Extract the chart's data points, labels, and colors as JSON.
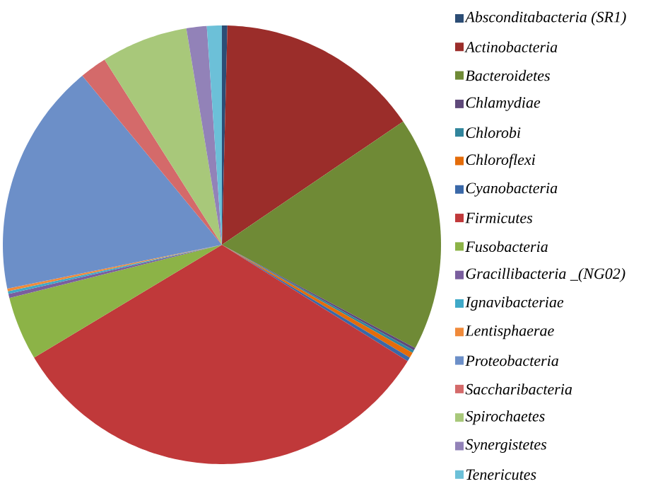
{
  "chart_data": {
    "type": "pie",
    "categories": [
      "Absconditabacteria (SR1)",
      "Actinobacteria",
      "Bacteroidetes",
      "Chlamydiae",
      "Chlorobi",
      "Chloroflexi",
      "Cyanobacteria",
      "Firmicutes",
      "Fusobacteria",
      "Gracillibacteria _(NG02)",
      "Ignavibacteriae",
      "Lentisphaerae",
      "Proteobacteria",
      "Saccharibacteria",
      "Spirochaetes",
      "Synergistetes",
      "Tenericutes"
    ],
    "values": [
      0.4,
      15.1,
      17.3,
      0.2,
      0.2,
      0.4,
      0.3,
      32.5,
      4.7,
      0.3,
      0.2,
      0.2,
      17.2,
      2.0,
      6.4,
      1.5,
      1.1
    ],
    "colors": [
      "#2c4d75",
      "#9b2d2a",
      "#6f8a36",
      "#5f497a",
      "#31859c",
      "#e46c0a",
      "#3a68a8",
      "#c0393a",
      "#8cb347",
      "#7a5e9e",
      "#3fa9c8",
      "#f08a3a",
      "#6c8fc8",
      "#d46a6a",
      "#a8c87a",
      "#9282b8",
      "#6cc0d8"
    ],
    "legend": "right"
  }
}
